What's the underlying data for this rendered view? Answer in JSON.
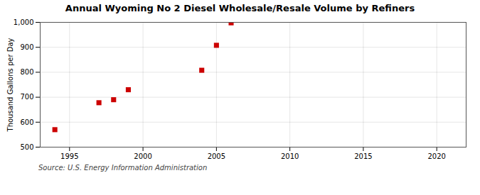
{
  "chart_data": {
    "type": "scatter",
    "title": "Annual Wyoming No 2 Diesel Wholesale/Resale Volume by Refiners",
    "ylabel": "Thousand Gallons per Day",
    "source": "Source: U.S. Energy Information Administration",
    "x": [
      1994,
      1997,
      1998,
      1999,
      2004,
      2005,
      2006
    ],
    "values": [
      570,
      678,
      690,
      730,
      808,
      908,
      998
    ],
    "color": "#cc0000",
    "marker": "square",
    "xlim": [
      1993,
      2022
    ],
    "ylim": [
      500,
      1000
    ],
    "xticks": [
      1995,
      2000,
      2005,
      2010,
      2015,
      2020
    ],
    "yticks": [
      500,
      600,
      700,
      800,
      900,
      {
        "value": 1000,
        "label": "1,000"
      }
    ],
    "grid": true
  }
}
